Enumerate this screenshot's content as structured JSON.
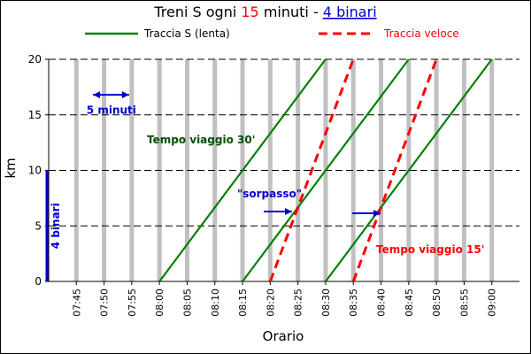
{
  "chart_data": {
    "type": "line",
    "title": {
      "prefix": "Treni S ogni ",
      "highlight": "15",
      "middle": " minuti - ",
      "link": "4 binari"
    },
    "xlabel": "Orario",
    "ylabel": "km",
    "x_range": [
      "07:40",
      "09:05"
    ],
    "ylim": [
      0,
      20
    ],
    "y_ticks": [
      0,
      5,
      10,
      15,
      20
    ],
    "x_ticks": [
      "07:45",
      "07:50",
      "07:55",
      "08:00",
      "08:05",
      "08:10",
      "08:15",
      "08:20",
      "08:25",
      "08:30",
      "08:35",
      "08:40",
      "08:45",
      "08:50",
      "08:55",
      "09:00"
    ],
    "grid": "horizontal dashed at y ticks; vertical grey bands every 5 minutes",
    "legend_position": "top",
    "series": [
      {
        "name": "Traccia S (lenta)",
        "color": "#008000",
        "style": "solid",
        "lines": [
          [
            [
              "08:00",
              0
            ],
            [
              "08:30",
              20
            ]
          ],
          [
            [
              "08:15",
              0
            ],
            [
              "08:45",
              20
            ]
          ],
          [
            [
              "08:30",
              0
            ],
            [
              "09:00",
              20
            ]
          ]
        ]
      },
      {
        "name": "Traccia veloce",
        "color": "#ff0000",
        "style": "dashed",
        "lines": [
          [
            [
              "08:20",
              0
            ],
            [
              "08:35",
              20
            ]
          ],
          [
            [
              "08:35",
              0
            ],
            [
              "08:50",
              20
            ]
          ]
        ]
      }
    ],
    "annotations": [
      {
        "text": "5 minuti",
        "color": "#0000cc",
        "x": "07:51",
        "y": 15.8
      },
      {
        "text": "Tempo viaggio 30'",
        "color": "#005000",
        "x": "08:04",
        "y": 12.8
      },
      {
        "text": "\"sorpasso\"",
        "color": "#0000cc",
        "x": "08:21",
        "y": 7.7
      },
      {
        "text": "Tempo viaggio 15'",
        "color": "#ff0000",
        "x": "08:46",
        "y": 2.6
      },
      {
        "text": "4 binari",
        "color": "#0000cc",
        "x": "07:40",
        "y": 7.5
      }
    ]
  }
}
